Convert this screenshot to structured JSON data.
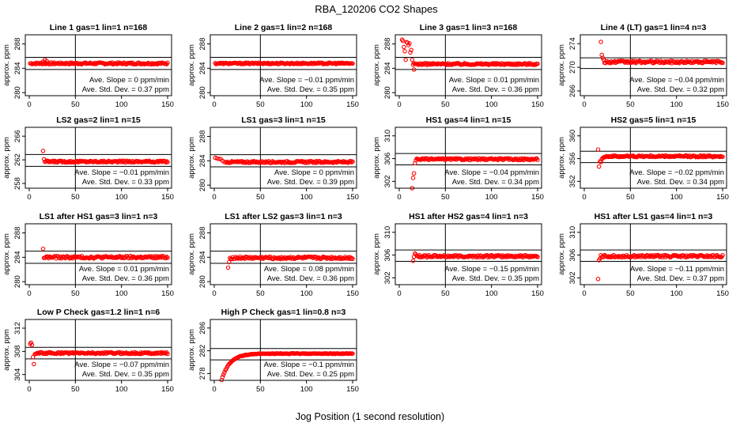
{
  "figure": {
    "title": "RBA_120206  CO2 Shapes",
    "xlabel": "Jog Position (1 second resolution)",
    "ylabel": "approx. ppm",
    "slope_prefix": "Ave. Slope = ",
    "slope_unit": " ppm/min",
    "std_prefix": "Ave. Std. Dev. = ",
    "std_unit": " ppm"
  },
  "colors": {
    "points": "#ff0000",
    "lines": "#000000"
  },
  "chart_data": [
    {
      "type": "scatter",
      "title": "Line 1 gas=1 lin=1 n=168",
      "xlim": [
        0,
        150
      ],
      "xticks": [
        0,
        50,
        100,
        150
      ],
      "yticks": [
        280,
        284,
        288
      ],
      "ylim": [
        279.5,
        289.5
      ],
      "hlines": [
        285.8,
        283.8
      ],
      "vline": 50,
      "slope": "0",
      "std": "0.37",
      "series": [
        {
          "name": "",
          "x_start": 1,
          "x_end": 150,
          "baseline": 284.8,
          "noise": 0.15,
          "lead": [
            [
              15,
              285.1
            ],
            [
              17,
              285.4
            ],
            [
              19,
              285.2
            ]
          ]
        }
      ]
    },
    {
      "type": "scatter",
      "title": "Line 2 gas=1 lin=2 n=168",
      "xlim": [
        0,
        150
      ],
      "xticks": [
        0,
        50,
        100,
        150
      ],
      "yticks": [
        280,
        284,
        288
      ],
      "ylim": [
        279.5,
        289.5
      ],
      "hlines": [
        285.8,
        283.8
      ],
      "vline": 50,
      "slope": "−0.01",
      "std": "0.35",
      "series": [
        {
          "name": "",
          "x_start": 1,
          "x_end": 150,
          "baseline": 284.8,
          "noise": 0.12,
          "lead": []
        }
      ]
    },
    {
      "type": "scatter",
      "title": "Line 3 gas=1 lin=3 n=168",
      "xlim": [
        0,
        150
      ],
      "xticks": [
        0,
        50,
        100,
        150
      ],
      "yticks": [
        280,
        284,
        288
      ],
      "ylim": [
        279.5,
        289.5
      ],
      "hlines": [
        285.8,
        283.8
      ],
      "vline": 50,
      "slope": "0.01",
      "std": "0.36",
      "series": [
        {
          "name": "",
          "x_start": 16,
          "x_end": 150,
          "baseline": 284.7,
          "noise": 0.15,
          "lead": [
            [
              3,
              288.7
            ],
            [
              4,
              288.5
            ],
            [
              5,
              287.5
            ],
            [
              6,
              286.8
            ],
            [
              7,
              285.4
            ],
            [
              8,
              288.3
            ],
            [
              9,
              288.2
            ],
            [
              10,
              287.8
            ],
            [
              11,
              288.1
            ],
            [
              12,
              286.6
            ],
            [
              13,
              287.0
            ],
            [
              14,
              285.4
            ],
            [
              15,
              284.6
            ],
            [
              16,
              283.8
            ]
          ]
        }
      ]
    },
    {
      "type": "scatter",
      "title": "Line 4 (LT) gas=1 lin=4 n=3",
      "xlim": [
        0,
        150
      ],
      "xticks": [
        0,
        50,
        100,
        150
      ],
      "yticks": [
        266,
        270,
        274
      ],
      "ylim": [
        265.2,
        275.5
      ],
      "hlines": [
        271.6,
        269.8
      ],
      "vline": 50,
      "slope": "−0.04",
      "std": "0.32",
      "series": [
        {
          "name": "",
          "x_start": 22,
          "x_end": 150,
          "baseline": 270.9,
          "noise": 0.2,
          "lead": [
            [
              18,
              274.3
            ],
            [
              19,
              272.1
            ],
            [
              20,
              271.6
            ],
            [
              21,
              271.3
            ]
          ]
        }
      ]
    },
    {
      "type": "scatter",
      "title": "LS2 gas=2 lin=1 n=15",
      "xlim": [
        0,
        150
      ],
      "xticks": [
        0,
        50,
        100,
        150
      ],
      "yticks": [
        258,
        262,
        266
      ],
      "ylim": [
        257.2,
        267.5
      ],
      "hlines": [
        262.9,
        260.9
      ],
      "vline": 50,
      "slope": "−0.01",
      "std": "0.33",
      "series": [
        {
          "name": "",
          "x_start": 17,
          "x_end": 150,
          "baseline": 261.7,
          "noise": 0.15,
          "lead": [
            [
              15,
              263.5
            ],
            [
              16,
              262.1
            ]
          ]
        }
      ]
    },
    {
      "type": "scatter",
      "title": "LS1 gas=3 lin=1 n=15",
      "xlim": [
        0,
        150
      ],
      "xticks": [
        0,
        50,
        100,
        150
      ],
      "yticks": [
        280,
        284,
        288
      ],
      "ylim": [
        279.5,
        289.5
      ],
      "hlines": [
        285.0,
        283.0
      ],
      "vline": 50,
      "slope": "0",
      "std": "0.39",
      "series": [
        {
          "name": "",
          "x_start": 14,
          "x_end": 150,
          "baseline": 283.8,
          "noise": 0.15,
          "lead": [
            [
              1,
              284.5
            ],
            [
              3,
              284.4
            ],
            [
              5,
              284.3
            ],
            [
              7,
              284.3
            ],
            [
              9,
              284.0
            ],
            [
              11,
              283.8
            ],
            [
              13,
              283.7
            ]
          ]
        }
      ]
    },
    {
      "type": "scatter",
      "title": "HS1 gas=4 lin=1 n=15",
      "xlim": [
        0,
        150
      ],
      "xticks": [
        0,
        50,
        100,
        150
      ],
      "yticks": [
        302,
        306,
        310
      ],
      "ylim": [
        300.8,
        311.5
      ],
      "hlines": [
        306.9,
        304.9
      ],
      "vline": 50,
      "slope": "−0.04",
      "std": "0.34",
      "series": [
        {
          "name": "",
          "x_start": 19,
          "x_end": 150,
          "baseline": 305.9,
          "noise": 0.15,
          "lead": [
            [
              14,
              300.8
            ],
            [
              15,
              302.6
            ],
            [
              16,
              303.4
            ],
            [
              17,
              305.2
            ],
            [
              18,
              305.7
            ]
          ]
        }
      ]
    },
    {
      "type": "scatter",
      "title": "HS2 gas=5 lin=1 n=15",
      "xlim": [
        0,
        150
      ],
      "xticks": [
        0,
        50,
        100,
        150
      ],
      "yticks": [
        352,
        356,
        360
      ],
      "ylim": [
        350.8,
        361.5
      ],
      "hlines": [
        357.3,
        355.3
      ],
      "vline": 50,
      "slope": "−0.02",
      "std": "0.34",
      "series": [
        {
          "name": "",
          "x_start": 22,
          "x_end": 150,
          "baseline": 356.4,
          "noise": 0.15,
          "lead": [
            [
              15,
              357.6
            ],
            [
              16,
              354.6
            ],
            [
              17,
              355.5
            ],
            [
              18,
              355.4
            ],
            [
              19,
              355.9
            ],
            [
              20,
              356.1
            ],
            [
              21,
              356.2
            ]
          ]
        }
      ]
    },
    {
      "type": "scatter",
      "title": "LS1 after HS1 gas=3 lin=1 n=3",
      "xlim": [
        0,
        150
      ],
      "xticks": [
        0,
        50,
        100,
        150
      ],
      "yticks": [
        280,
        284,
        288
      ],
      "ylim": [
        279.5,
        289.5
      ],
      "hlines": [
        285.0,
        283.0
      ],
      "vline": 50,
      "slope": "0.01",
      "std": "0.36",
      "series": [
        {
          "name": "",
          "x_start": 17,
          "x_end": 150,
          "baseline": 284.0,
          "noise": 0.2,
          "lead": [
            [
              15,
              285.4
            ],
            [
              16,
              283.9
            ]
          ]
        }
      ]
    },
    {
      "type": "scatter",
      "title": "LS1 after LS2 gas=3 lin=1 n=3",
      "xlim": [
        0,
        150
      ],
      "xticks": [
        0,
        50,
        100,
        150
      ],
      "yticks": [
        280,
        284,
        288
      ],
      "ylim": [
        279.5,
        289.5
      ],
      "hlines": [
        285.0,
        283.0
      ],
      "vline": 50,
      "slope": "0.08",
      "std": "0.36",
      "series": [
        {
          "name": "",
          "x_start": 17,
          "x_end": 150,
          "baseline": 283.9,
          "noise": 0.2,
          "lead": [
            [
              15,
              282.3
            ],
            [
              16,
              283.2
            ]
          ]
        }
      ]
    },
    {
      "type": "scatter",
      "title": "HS1 after HS2 gas=4 lin=1 n=3",
      "xlim": [
        0,
        150
      ],
      "xticks": [
        0,
        50,
        100,
        150
      ],
      "yticks": [
        302,
        306,
        310
      ],
      "ylim": [
        300.8,
        311.5
      ],
      "hlines": [
        306.9,
        304.9
      ],
      "vline": 50,
      "slope": "−0.15",
      "std": "0.35",
      "series": [
        {
          "name": "",
          "x_start": 19,
          "x_end": 150,
          "baseline": 305.8,
          "noise": 0.2,
          "lead": [
            [
              15,
              305.0
            ],
            [
              16,
              305.7
            ],
            [
              17,
              306.3
            ],
            [
              18,
              306.1
            ]
          ]
        }
      ]
    },
    {
      "type": "scatter",
      "title": "HS1 after LS1 gas=4 lin=1 n=3",
      "xlim": [
        0,
        150
      ],
      "xticks": [
        0,
        50,
        100,
        150
      ],
      "yticks": [
        302,
        306,
        310
      ],
      "ylim": [
        300.8,
        311.5
      ],
      "hlines": [
        306.9,
        304.9
      ],
      "vline": 50,
      "slope": "−0.11",
      "std": "0.37",
      "series": [
        {
          "name": "",
          "x_start": 18,
          "x_end": 150,
          "baseline": 305.8,
          "noise": 0.2,
          "lead": [
            [
              15,
              301.8
            ],
            [
              16,
              305.1
            ],
            [
              17,
              305.4
            ]
          ]
        }
      ]
    },
    {
      "type": "scatter",
      "title": "Low P Check gas=1.2 lin=1 n=6",
      "xlim": [
        0,
        150
      ],
      "xticks": [
        0,
        50,
        100,
        150
      ],
      "yticks": [
        304,
        308,
        312
      ],
      "ylim": [
        303.0,
        313.5
      ],
      "hlines": [
        308.7,
        306.7
      ],
      "vline": 50,
      "slope": "−0.07",
      "std": "0.35",
      "series": [
        {
          "name": "",
          "x_start": 8,
          "x_end": 150,
          "baseline": 307.7,
          "noise": 0.15,
          "lead": [
            [
              1,
              309.3
            ],
            [
              2,
              309.5
            ],
            [
              3,
              309.1
            ],
            [
              4,
              307.0
            ],
            [
              5,
              305.8
            ],
            [
              6,
              307.5
            ],
            [
              7,
              307.6
            ]
          ]
        }
      ]
    },
    {
      "type": "scatter",
      "title": "High P Check gas=1 lin=0.8 n=3",
      "xlim": [
        0,
        150
      ],
      "xticks": [
        0,
        50,
        100,
        150
      ],
      "yticks": [
        278,
        282,
        286
      ],
      "ylim": [
        276.8,
        287.5
      ],
      "hlines": [
        282.4,
        280.4
      ],
      "vline": 50,
      "slope": "−0.1",
      "std": "0.25",
      "series": [
        {
          "name": "",
          "x_start": 8,
          "x_end": 150,
          "baseline": 281.5,
          "noise": 0.12,
          "rise": {
            "from": 276.9,
            "tau": 9
          },
          "lead": []
        }
      ]
    }
  ]
}
